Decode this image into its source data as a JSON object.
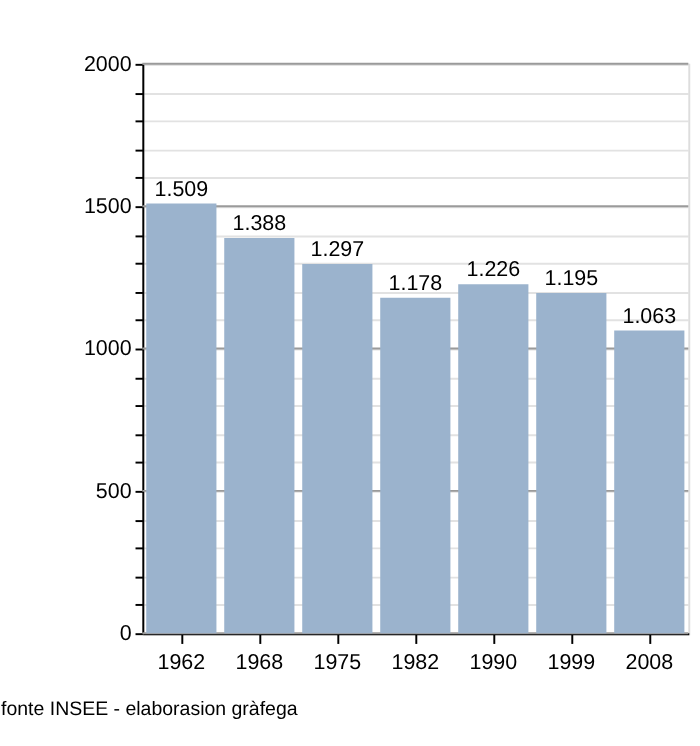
{
  "chart_data": {
    "type": "bar",
    "categories": [
      "1962",
      "1968",
      "1975",
      "1982",
      "1990",
      "1999",
      "2008"
    ],
    "values": [
      1509,
      1388,
      1297,
      1178,
      1226,
      1195,
      1063
    ],
    "value_labels": [
      "1.509",
      "1.388",
      "1.297",
      "1.178",
      "1.226",
      "1.195",
      "1.063"
    ],
    "color": "#9bb3cd",
    "ylim": [
      0,
      2000
    ],
    "yticks": [
      0,
      {
        "value": 100,
        "label": null
      },
      {
        "value": 200,
        "label": null
      },
      {
        "value": 300,
        "label": null
      },
      {
        "value": 400,
        "label": null
      },
      500,
      {
        "value": 600,
        "label": null
      },
      {
        "value": 700,
        "label": null
      },
      {
        "value": 800,
        "label": null
      },
      {
        "value": 900,
        "label": null
      },
      1000,
      {
        "value": 1100,
        "label": null
      },
      {
        "value": 1200,
        "label": null
      },
      {
        "value": 1300,
        "label": null
      },
      {
        "value": 1400,
        "label": null
      },
      1500,
      {
        "value": 1600,
        "label": null
      },
      {
        "value": 1700,
        "label": null
      },
      {
        "value": 1800,
        "label": null
      },
      {
        "value": 1900,
        "label": null
      },
      2000
    ],
    "grid": "y",
    "annotations": [
      "fonte INSEE - elaborasion gràfega"
    ]
  }
}
